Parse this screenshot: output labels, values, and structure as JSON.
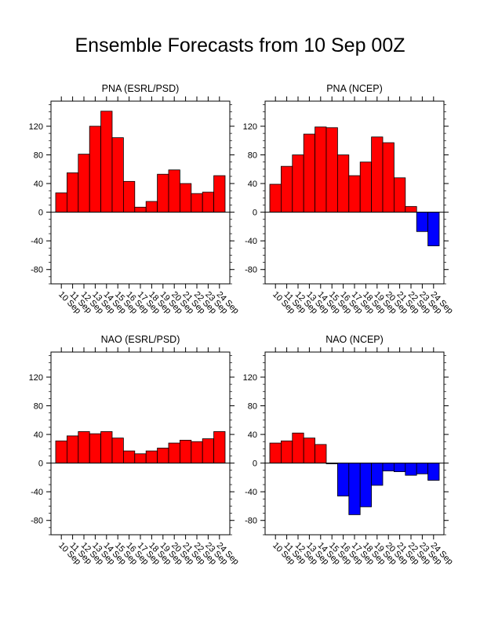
{
  "title": "Ensemble Forecasts from 10 Sep 00Z",
  "colors": {
    "positive": "#ff0000",
    "negative": "#0000ff",
    "edge": "#000000"
  },
  "chart_data": [
    {
      "type": "bar",
      "title": "PNA (ESRL/PSD)",
      "categories": [
        "10 Sep",
        "11 Sep",
        "12 Sep",
        "13 Sep",
        "14 Sep",
        "15 Sep",
        "16 Sep",
        "17 Sep",
        "18 Sep",
        "19 Sep",
        "20 Sep",
        "21 Sep",
        "22 Sep",
        "23 Sep",
        "24 Sep"
      ],
      "values": [
        27,
        55,
        81,
        120,
        141,
        104,
        43,
        7,
        15,
        53,
        59,
        40,
        26,
        28,
        51
      ],
      "ylim": [
        -100,
        155
      ],
      "yticks": [
        -80,
        -40,
        0,
        40,
        80,
        120
      ],
      "ytick_labels": [
        "-80",
        "-40",
        "0",
        "40",
        "80",
        "120"
      ],
      "grid": false
    },
    {
      "type": "bar",
      "title": "PNA (NCEP)",
      "categories": [
        "10 Sep",
        "11 Sep",
        "12 Sep",
        "13 Sep",
        "14 Sep",
        "15 Sep",
        "16 Sep",
        "17 Sep",
        "18 Sep",
        "19 Sep",
        "20 Sep",
        "21 Sep",
        "22 Sep",
        "23 Sep",
        "24 Sep"
      ],
      "values": [
        39,
        64,
        80,
        109,
        119,
        118,
        80,
        51,
        70,
        105,
        97,
        48,
        8,
        -27,
        -47
      ],
      "ylim": [
        -100,
        155
      ],
      "yticks": [
        -80,
        -40,
        0,
        40,
        80,
        120
      ],
      "ytick_labels": [
        "-80",
        "-40",
        "0",
        "40",
        "80",
        "120"
      ],
      "grid": false
    },
    {
      "type": "bar",
      "title": "NAO (ESRL/PSD)",
      "categories": [
        "10 Sep",
        "11 Sep",
        "12 Sep",
        "13 Sep",
        "14 Sep",
        "15 Sep",
        "16 Sep",
        "17 Sep",
        "18 Sep",
        "19 Sep",
        "20 Sep",
        "21 Sep",
        "22 Sep",
        "23 Sep",
        "24 Sep"
      ],
      "values": [
        31,
        38,
        44,
        41,
        44,
        35,
        17,
        13,
        17,
        21,
        28,
        32,
        30,
        34,
        44
      ],
      "ylim": [
        -100,
        155
      ],
      "yticks": [
        -80,
        -40,
        0,
        40,
        80,
        120
      ],
      "ytick_labels": [
        "-80",
        "-40",
        "0",
        "40",
        "80",
        "120"
      ],
      "grid": false
    },
    {
      "type": "bar",
      "title": "NAO (NCEP)",
      "categories": [
        "10 Sep",
        "11 Sep",
        "12 Sep",
        "13 Sep",
        "14 Sep",
        "15 Sep",
        "16 Sep",
        "17 Sep",
        "18 Sep",
        "19 Sep",
        "20 Sep",
        "21 Sep",
        "22 Sep",
        "23 Sep",
        "24 Sep"
      ],
      "values": [
        28,
        31,
        42,
        35,
        26,
        -1,
        -46,
        -72,
        -61,
        -31,
        -11,
        -12,
        -17,
        -15,
        -24
      ],
      "ylim": [
        -100,
        155
      ],
      "yticks": [
        -80,
        -40,
        0,
        40,
        80,
        120
      ],
      "ytick_labels": [
        "-80",
        "-40",
        "0",
        "40",
        "80",
        "120"
      ],
      "grid": false
    }
  ]
}
